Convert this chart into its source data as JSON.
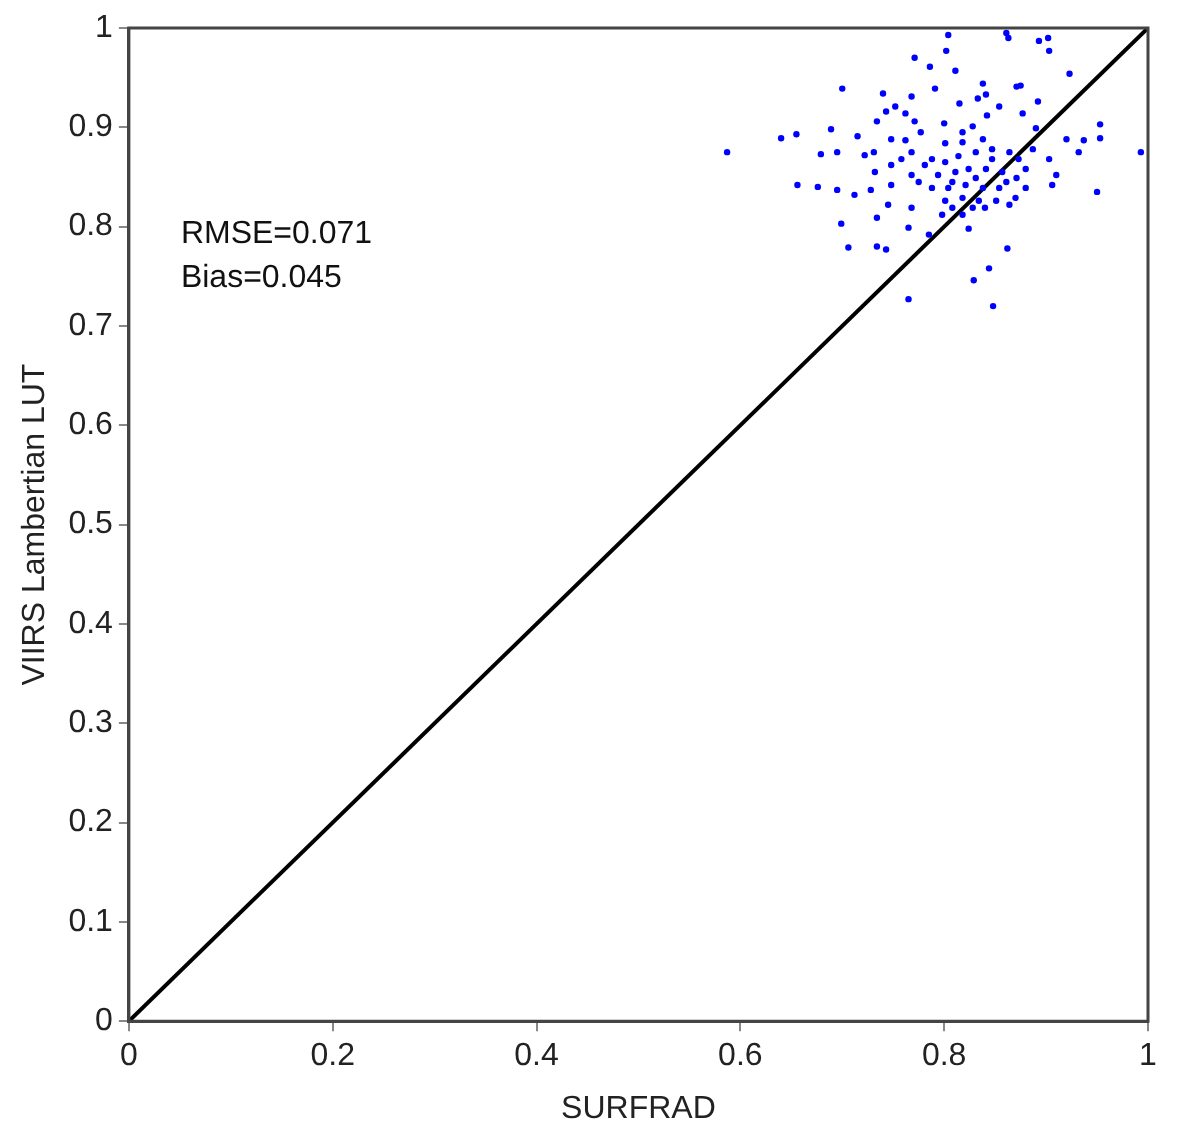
{
  "chart_data": {
    "type": "scatter",
    "xlabel": "SURFRAD",
    "ylabel": "VIIRS Lambertian LUT",
    "annotations": [
      "RMSE=0.071",
      "Bias=0.045"
    ],
    "xlim": [
      0,
      1
    ],
    "ylim": [
      0,
      1
    ],
    "xticks": [
      0,
      0.2,
      0.4,
      0.6,
      0.8,
      1
    ],
    "yticks": [
      0,
      0.1,
      0.2,
      0.3,
      0.4,
      0.5,
      0.6,
      0.7,
      0.8,
      0.9,
      1
    ],
    "grid": false,
    "legend": false,
    "marker": "circle",
    "series": [
      {
        "color": "#0000ff",
        "x": [
          0.587,
          0.64,
          0.655,
          0.689,
          0.7,
          0.656,
          0.676,
          0.695,
          0.699,
          0.706,
          0.734,
          0.743,
          0.734,
          0.765,
          0.848,
          0.844,
          0.829,
          0.862,
          0.824,
          0.861,
          0.863,
          0.902,
          0.893,
          0.903,
          0.804,
          0.802,
          0.771,
          0.786,
          0.811,
          0.838,
          0.871,
          0.875,
          0.923,
          0.74,
          0.768,
          0.791,
          0.752,
          0.734,
          0.743,
          0.762,
          0.815,
          0.833,
          0.841,
          0.854,
          0.892,
          0.877,
          0.8,
          0.828,
          0.842,
          0.771,
          0.748,
          0.762,
          0.715,
          0.679,
          0.695,
          0.731,
          0.777,
          0.818,
          0.89,
          0.953,
          0.937,
          0.953,
          0.993,
          0.92,
          0.932,
          0.903,
          0.91,
          0.906,
          0.95,
          0.748,
          0.732,
          0.748,
          0.768,
          0.712,
          0.728,
          0.745,
          0.768,
          0.765,
          0.785,
          0.798,
          0.818,
          0.84,
          0.87,
          0.788,
          0.801,
          0.814,
          0.831,
          0.847,
          0.864,
          0.873,
          0.794,
          0.811,
          0.824,
          0.841,
          0.857,
          0.871,
          0.88,
          0.788,
          0.804,
          0.821,
          0.838,
          0.854,
          0.801,
          0.818,
          0.834,
          0.851,
          0.864,
          0.808,
          0.828,
          0.781,
          0.775,
          0.818,
          0.838,
          0.801,
          0.847,
          0.831,
          0.808,
          0.861,
          0.88,
          0.887,
          0.768,
          0.758,
          0.722
        ],
        "values": [
          0.875,
          0.889,
          0.893,
          0.898,
          0.939,
          0.842,
          0.84,
          0.837,
          0.803,
          0.779,
          0.78,
          0.777,
          0.809,
          0.727,
          0.72,
          0.758,
          0.746,
          0.778,
          0.798,
          0.995,
          0.99,
          0.99,
          0.987,
          0.977,
          0.993,
          0.977,
          0.97,
          0.961,
          0.957,
          0.944,
          0.941,
          0.942,
          0.954,
          0.934,
          0.931,
          0.939,
          0.921,
          0.906,
          0.916,
          0.914,
          0.924,
          0.929,
          0.933,
          0.921,
          0.926,
          0.914,
          0.904,
          0.901,
          0.912,
          0.906,
          0.888,
          0.887,
          0.891,
          0.873,
          0.875,
          0.875,
          0.895,
          0.895,
          0.899,
          0.903,
          0.887,
          0.889,
          0.875,
          0.888,
          0.875,
          0.868,
          0.852,
          0.842,
          0.835,
          0.862,
          0.855,
          0.842,
          0.852,
          0.832,
          0.837,
          0.822,
          0.819,
          0.799,
          0.792,
          0.812,
          0.812,
          0.819,
          0.829,
          0.868,
          0.865,
          0.871,
          0.875,
          0.878,
          0.875,
          0.868,
          0.852,
          0.855,
          0.858,
          0.858,
          0.855,
          0.849,
          0.839,
          0.839,
          0.839,
          0.842,
          0.839,
          0.839,
          0.826,
          0.829,
          0.826,
          0.826,
          0.822,
          0.819,
          0.819,
          0.862,
          0.845,
          0.885,
          0.888,
          0.884,
          0.868,
          0.849,
          0.845,
          0.845,
          0.858,
          0.878,
          0.875,
          0.868,
          0.872
        ]
      },
      {
        "type": "line",
        "marker": "none",
        "color": "#000000",
        "x": [
          0,
          1
        ],
        "values": [
          0,
          1
        ]
      }
    ]
  }
}
